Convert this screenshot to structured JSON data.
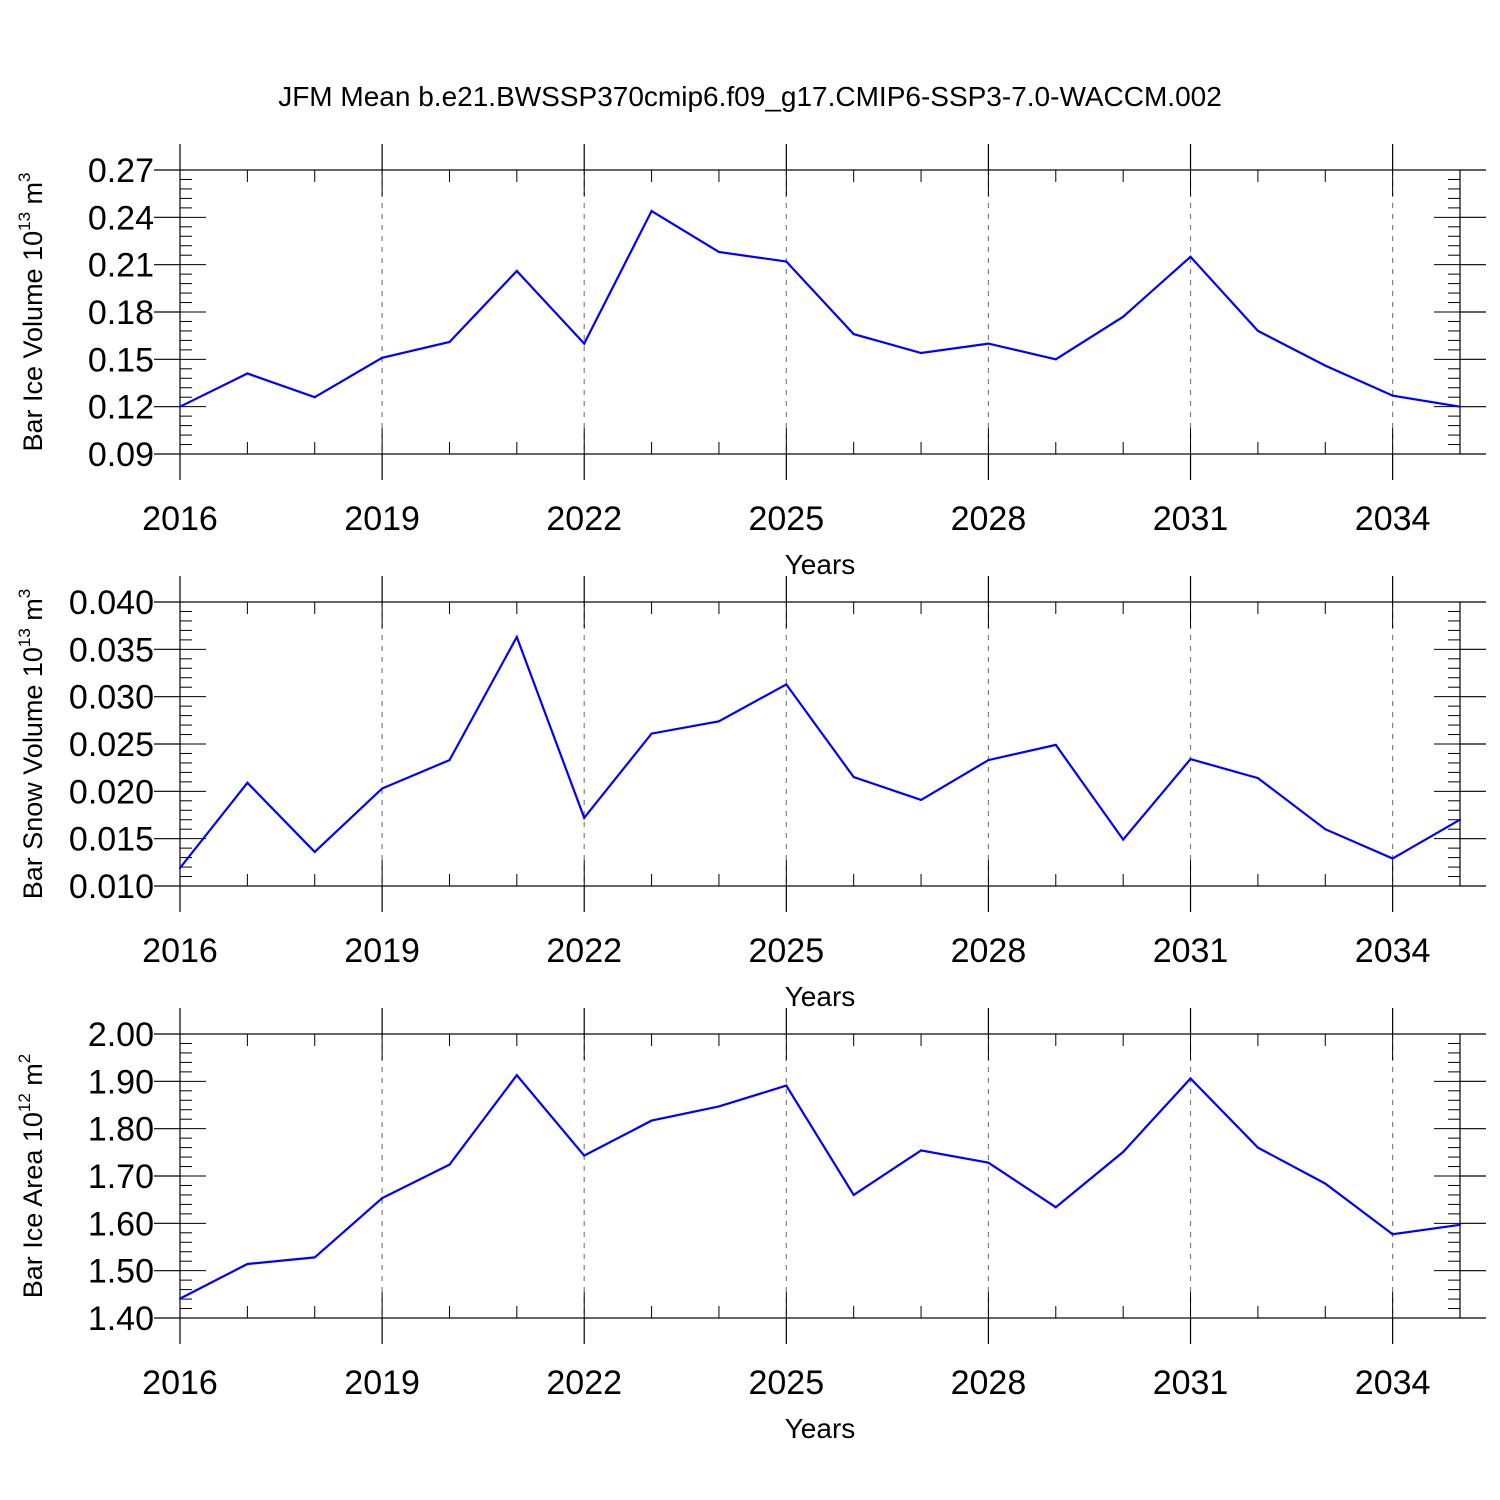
{
  "title": "JFM Mean b.e21.BWSSP370cmip6.f09_g17.CMIP6-SSP3-7.0-WACCM.002",
  "line_color": "#0000ff",
  "chart_data": [
    {
      "type": "line",
      "id": "ice-volume",
      "ylabel": "Bar Ice Volume 10",
      "ylabel_exponent": "13",
      "ylabel_unit": " m",
      "ylabel_unit_exponent": "3",
      "xlabel": "Years",
      "xlim": [
        2016,
        2035
      ],
      "ylim": [
        0.09,
        0.27
      ],
      "xticks": [
        2016,
        2019,
        2022,
        2025,
        2028,
        2031,
        2034
      ],
      "xtick_labels": [
        "2016",
        "2019",
        "2022",
        "2025",
        "2028",
        "2031",
        "2034"
      ],
      "yticks": [
        0.09,
        0.12,
        0.15,
        0.18,
        0.21,
        0.24,
        0.27
      ],
      "ytick_labels": [
        "0.09",
        "0.12",
        "0.15",
        "0.18",
        "0.21",
        "0.24",
        "0.27"
      ],
      "yminor_step": 0.006,
      "x": [
        2016,
        2017,
        2018,
        2019,
        2020,
        2021,
        2022,
        2023,
        2024,
        2025,
        2026,
        2027,
        2028,
        2029,
        2030,
        2031,
        2032,
        2033,
        2034,
        2035
      ],
      "values": [
        0.12,
        0.141,
        0.126,
        0.151,
        0.161,
        0.206,
        0.16,
        0.244,
        0.218,
        0.212,
        0.166,
        0.154,
        0.16,
        0.15,
        0.177,
        0.215,
        0.168,
        0.146,
        0.127,
        0.12
      ]
    },
    {
      "type": "line",
      "id": "snow-volume",
      "ylabel": "Bar Snow Volume 10",
      "ylabel_exponent": "13",
      "ylabel_unit": " m",
      "ylabel_unit_exponent": "3",
      "xlabel": "Years",
      "xlim": [
        2016,
        2035
      ],
      "ylim": [
        0.01,
        0.04
      ],
      "xticks": [
        2016,
        2019,
        2022,
        2025,
        2028,
        2031,
        2034
      ],
      "xtick_labels": [
        "2016",
        "2019",
        "2022",
        "2025",
        "2028",
        "2031",
        "2034"
      ],
      "yticks": [
        0.01,
        0.015,
        0.02,
        0.025,
        0.03,
        0.035,
        0.04
      ],
      "ytick_labels": [
        "0.010",
        "0.015",
        "0.020",
        "0.025",
        "0.030",
        "0.035",
        "0.040"
      ],
      "yminor_step": 0.001,
      "x": [
        2016,
        2017,
        2018,
        2019,
        2020,
        2021,
        2022,
        2023,
        2024,
        2025,
        2026,
        2027,
        2028,
        2029,
        2030,
        2031,
        2032,
        2033,
        2034,
        2035
      ],
      "values": [
        0.0119,
        0.0209,
        0.0136,
        0.0203,
        0.0233,
        0.0363,
        0.0172,
        0.0261,
        0.0274,
        0.0313,
        0.0215,
        0.0191,
        0.0233,
        0.0249,
        0.0149,
        0.0234,
        0.0214,
        0.016,
        0.0129,
        0.017
      ]
    },
    {
      "type": "line",
      "id": "ice-area",
      "ylabel": "Bar Ice Area 10",
      "ylabel_exponent": "12",
      "ylabel_unit": " m",
      "ylabel_unit_exponent": "2",
      "xlabel": "Years",
      "xlim": [
        2016,
        2035
      ],
      "ylim": [
        1.4,
        2.0
      ],
      "xticks": [
        2016,
        2019,
        2022,
        2025,
        2028,
        2031,
        2034
      ],
      "xtick_labels": [
        "2016",
        "2019",
        "2022",
        "2025",
        "2028",
        "2031",
        "2034"
      ],
      "yticks": [
        1.4,
        1.5,
        1.6,
        1.7,
        1.8,
        1.9,
        2.0
      ],
      "ytick_labels": [
        "1.40",
        "1.50",
        "1.60",
        "1.70",
        "1.80",
        "1.90",
        "2.00"
      ],
      "yminor_step": 0.02,
      "x": [
        2016,
        2017,
        2018,
        2019,
        2020,
        2021,
        2022,
        2023,
        2024,
        2025,
        2026,
        2027,
        2028,
        2029,
        2030,
        2031,
        2032,
        2033,
        2034,
        2035
      ],
      "values": [
        1.441,
        1.514,
        1.528,
        1.653,
        1.724,
        1.913,
        1.743,
        1.817,
        1.847,
        1.891,
        1.66,
        1.754,
        1.728,
        1.634,
        1.751,
        1.906,
        1.76,
        1.684,
        1.577,
        1.597
      ]
    }
  ]
}
